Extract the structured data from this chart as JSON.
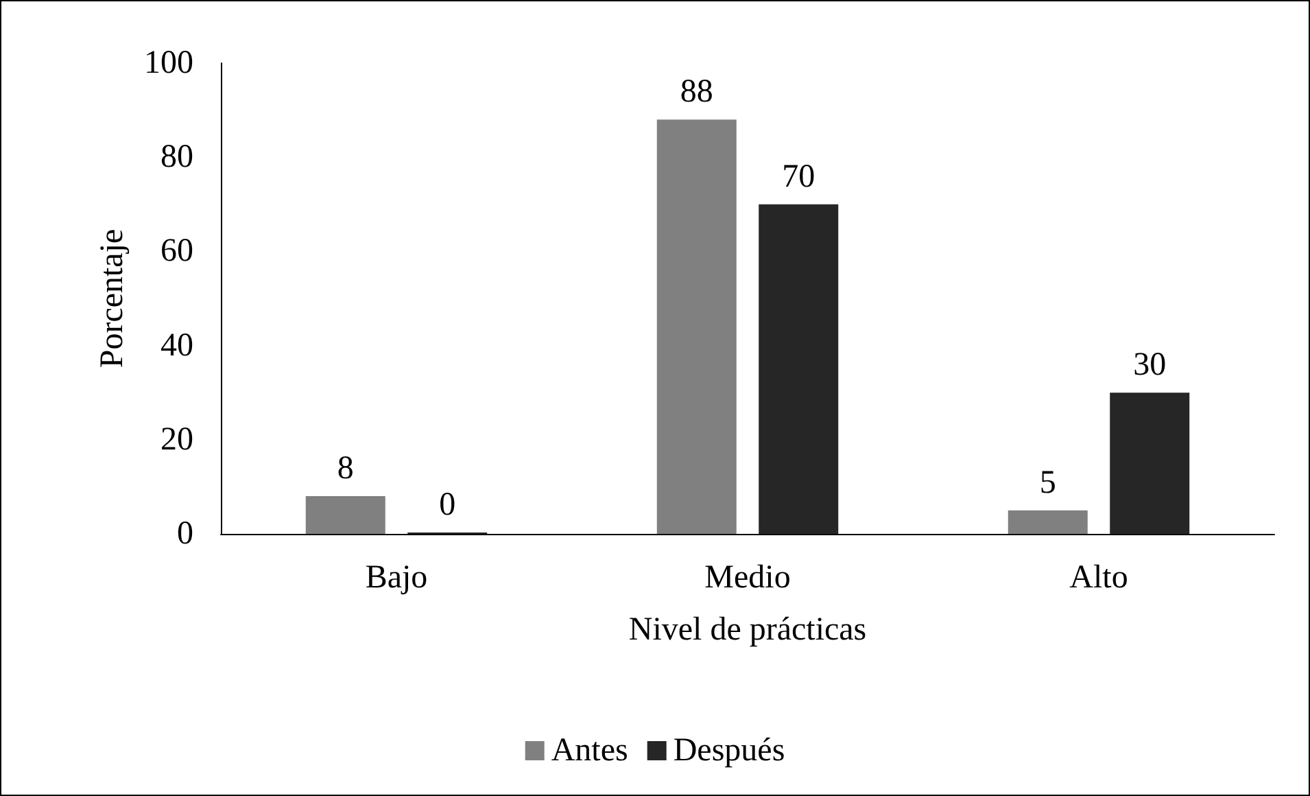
{
  "chart_data": {
    "type": "bar",
    "xlabel": "Nivel de prácticas",
    "ylabel": "Porcentaje",
    "categories": [
      "Bajo",
      "Medio",
      "Alto"
    ],
    "series": [
      {
        "name": "Antes",
        "color": "#808080",
        "values": [
          8,
          88,
          5
        ]
      },
      {
        "name": "Después",
        "color": "#262626",
        "values": [
          0,
          70,
          30
        ]
      }
    ],
    "ylim": [
      0,
      100
    ],
    "yticks": [
      0,
      20,
      40,
      60,
      80,
      100
    ],
    "grid": false,
    "legend": "bottom",
    "data_labels": true
  }
}
